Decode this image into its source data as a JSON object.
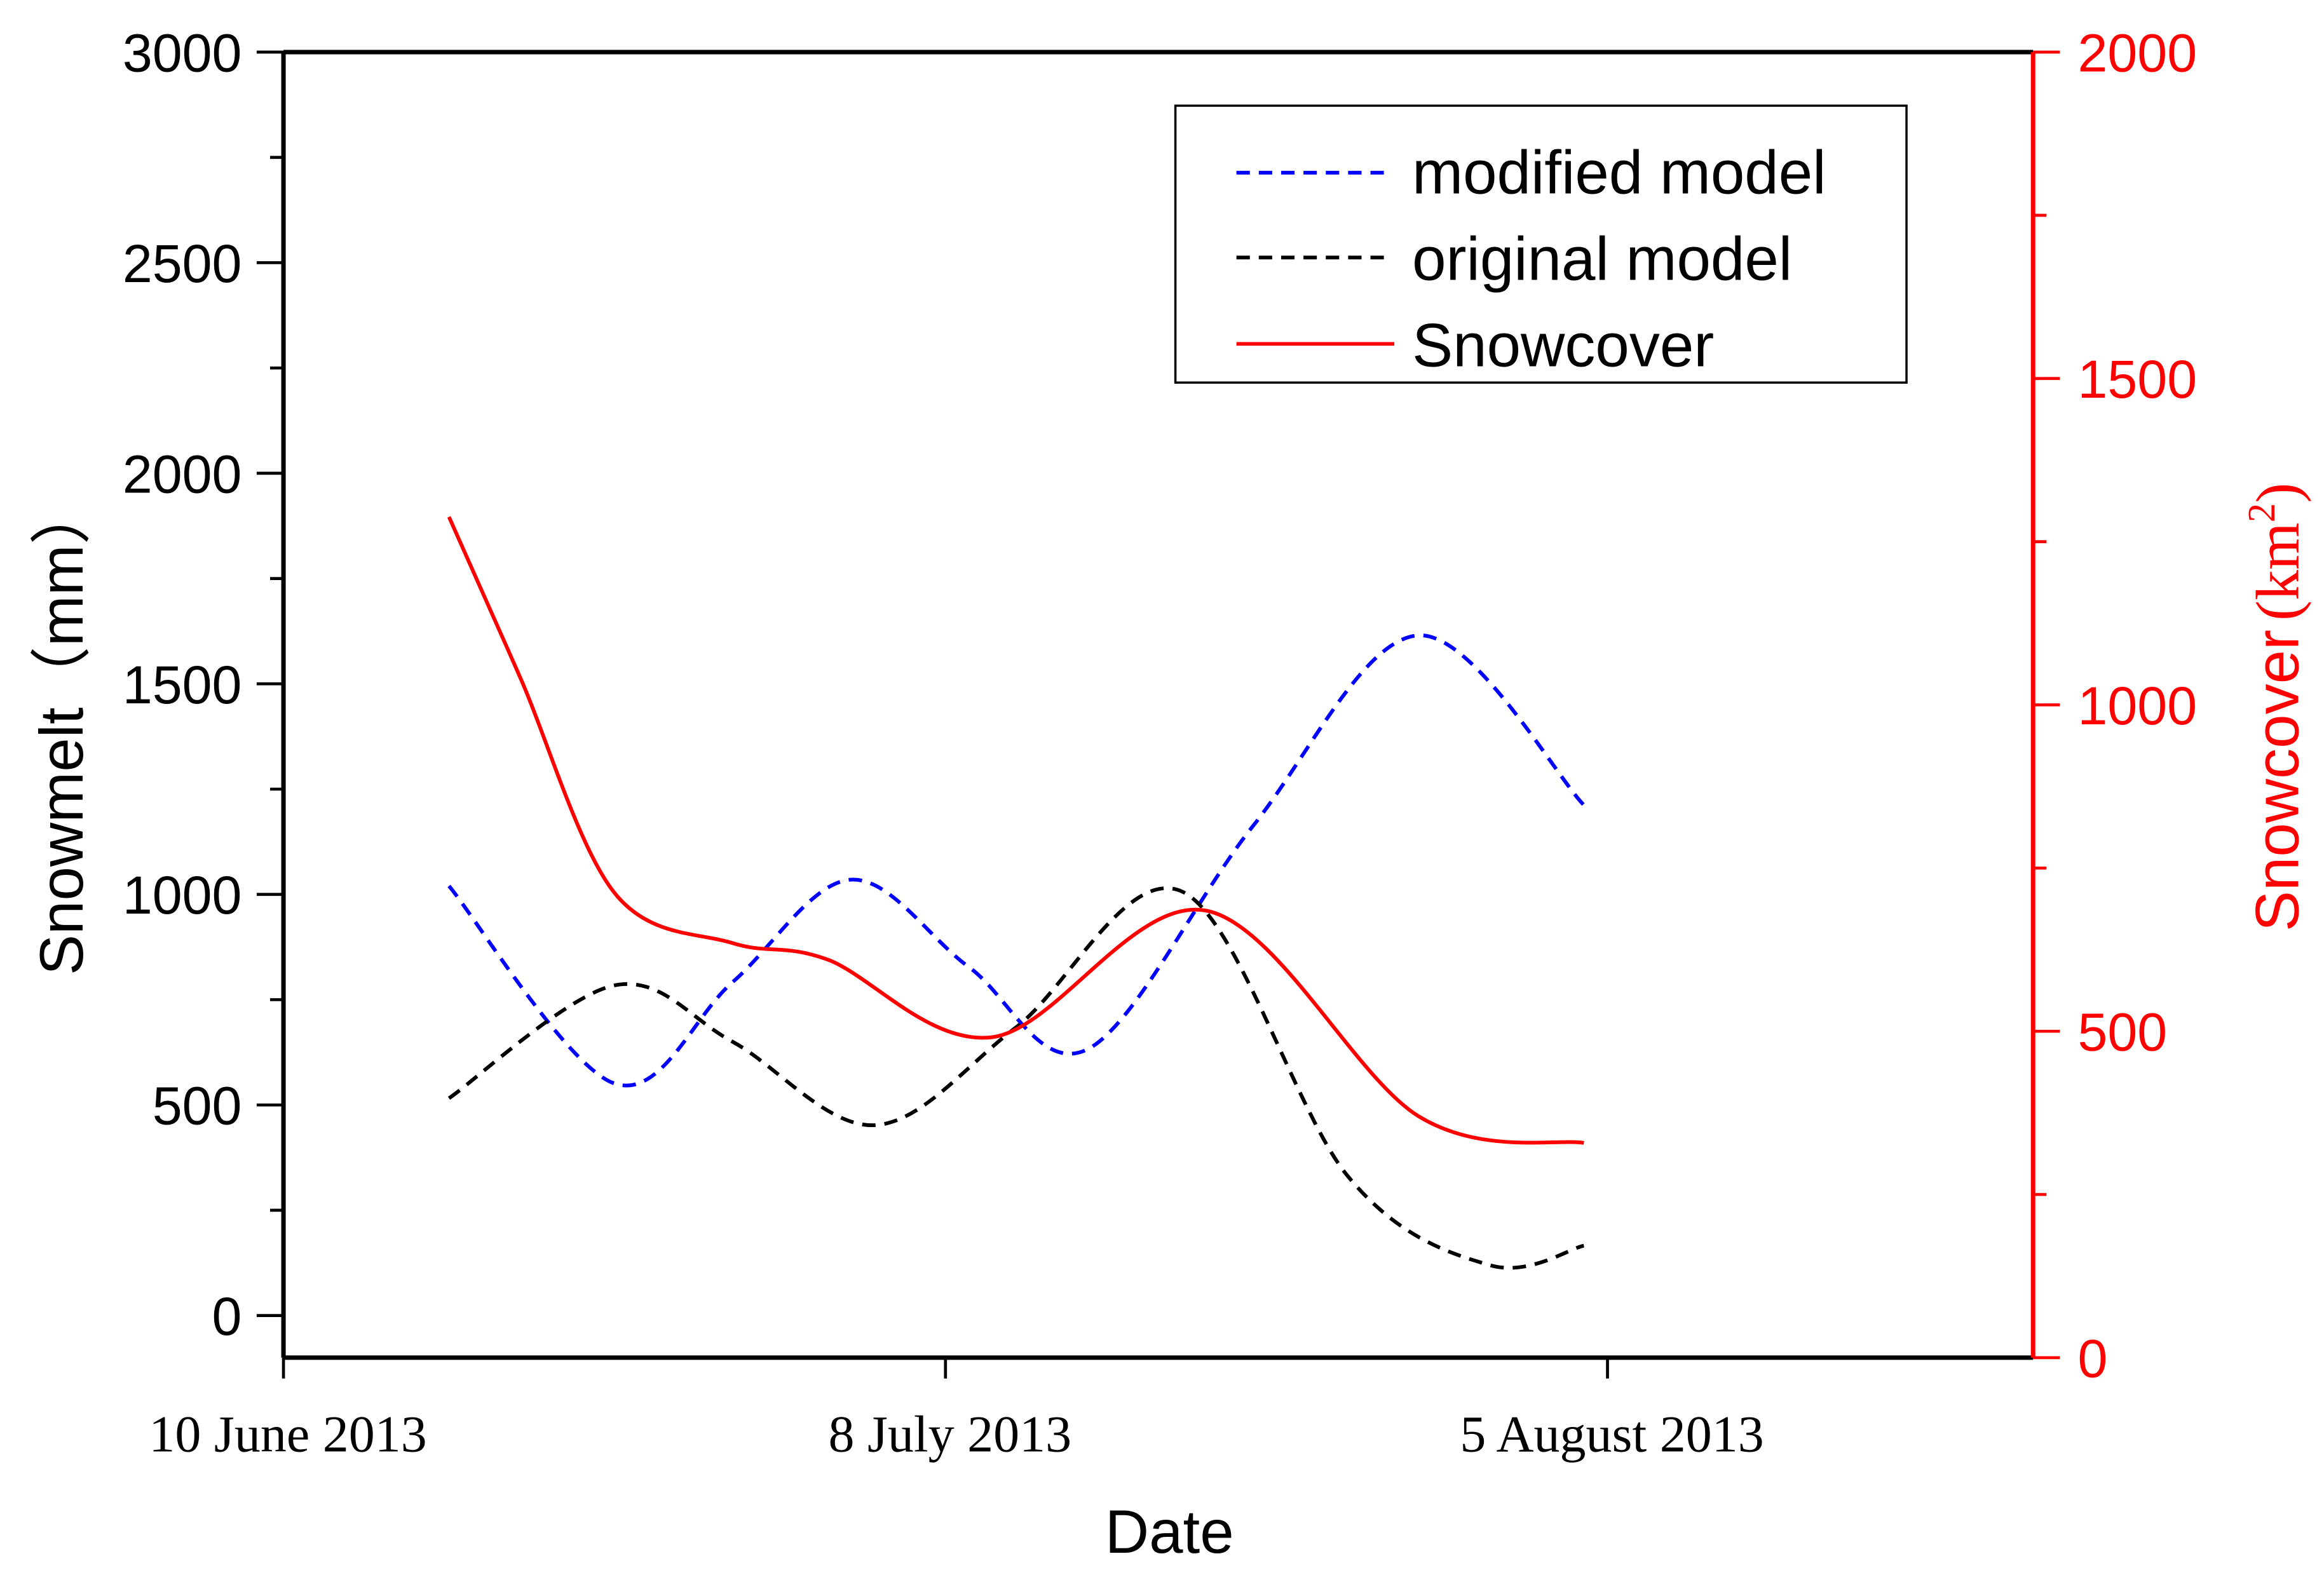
{
  "chart_data": {
    "type": "line",
    "xlabel": "Date",
    "ylabel_left": "Snowmelt（mm）",
    "ylabel_right": "Snowcover (km²)",
    "ylabel_right_parts": {
      "main": "Snowcover",
      "unit": "(km",
      "sup": "2",
      "close": ")"
    },
    "x_ticks": [
      {
        "date": "2013-06-10",
        "label": "10 June 2013"
      },
      {
        "date": "2013-07-08",
        "label": "8 July 2013"
      },
      {
        "date": "2013-08-05",
        "label": "5 August 2013"
      }
    ],
    "xlim": [
      "2013-06-10",
      "2013-08-23"
    ],
    "ylim_left": [
      -100,
      3000
    ],
    "yticks_left": [
      0,
      500,
      1000,
      1500,
      2000,
      2500,
      3000
    ],
    "ylim_right": [
      0,
      2000
    ],
    "yticks_right": [
      0,
      500,
      1000,
      1500,
      2000
    ],
    "grid": false,
    "legend_position": "top-right",
    "series": [
      {
        "name": "modified model",
        "axis": "left",
        "style": "dashed",
        "color": "#0000ff",
        "points": [
          [
            "2013-06-17",
            1020
          ],
          [
            "2013-06-24",
            551
          ],
          [
            "2013-06-29",
            792
          ],
          [
            "2013-07-04",
            1035
          ],
          [
            "2013-07-09",
            827
          ],
          [
            "2013-07-14",
            632
          ],
          [
            "2013-07-21",
            1162
          ],
          [
            "2013-07-28",
            1615
          ],
          [
            "2013-08-04",
            1212
          ]
        ]
      },
      {
        "name": "original model",
        "axis": "left",
        "style": "dashed",
        "color": "#000000",
        "points": [
          [
            "2013-06-17",
            516
          ],
          [
            "2013-06-24",
            784
          ],
          [
            "2013-06-29",
            650
          ],
          [
            "2013-07-05",
            452
          ],
          [
            "2013-07-11",
            685
          ],
          [
            "2013-07-18",
            1007
          ],
          [
            "2013-07-25",
            332
          ],
          [
            "2013-07-31",
            120
          ],
          [
            "2013-08-04",
            166
          ]
        ]
      },
      {
        "name": "Snowcover",
        "axis": "right",
        "style": "solid",
        "color": "#ff0000",
        "points": [
          [
            "2013-06-17",
            1288
          ],
          [
            "2013-06-20",
            1043
          ],
          [
            "2013-06-24",
            712
          ],
          [
            "2013-06-29",
            635
          ],
          [
            "2013-07-03",
            610
          ],
          [
            "2013-07-10",
            491
          ],
          [
            "2013-07-19",
            685
          ],
          [
            "2013-07-28",
            370
          ],
          [
            "2013-08-04",
            329
          ]
        ]
      }
    ]
  }
}
